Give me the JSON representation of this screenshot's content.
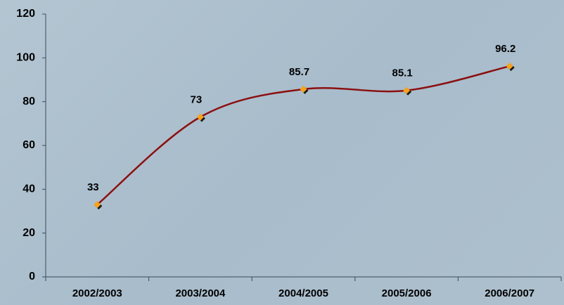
{
  "chart_data": {
    "type": "line",
    "categories": [
      "2002/2003",
      "2003/2004",
      "2004/2005",
      "2005/2006",
      "2006/2007"
    ],
    "values": [
      33,
      73,
      85.7,
      85.1,
      96.2
    ],
    "color": "#8b1010",
    "marker_color": "#f7a21b",
    "ylim": [
      0,
      120
    ],
    "yticks": [
      0,
      20,
      40,
      60,
      80,
      100,
      120
    ],
    "grid": false,
    "smooth": true
  }
}
